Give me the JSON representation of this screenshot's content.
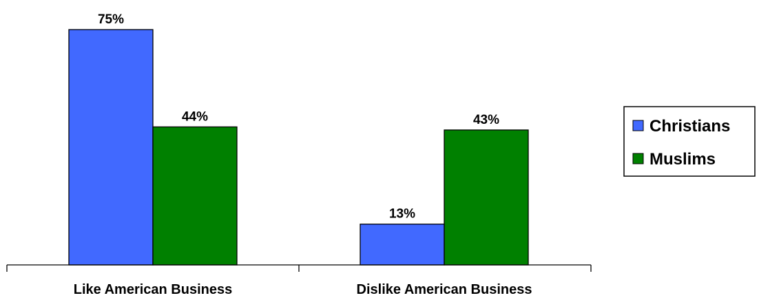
{
  "chart_data": {
    "type": "bar",
    "categories": [
      "Like American Business",
      "Dislike American Business"
    ],
    "series": [
      {
        "name": "Christians",
        "values": [
          75,
          13
        ],
        "labels": [
          "75%",
          "13%"
        ],
        "color": "#4169ff"
      },
      {
        "name": "Muslims",
        "values": [
          44,
          43
        ],
        "labels": [
          "44%",
          "43%"
        ],
        "color": "#008000"
      }
    ],
    "title": "",
    "xlabel": "",
    "ylabel": "",
    "ylim": [
      0,
      75
    ],
    "grid": false,
    "legend_position": "right",
    "value_unit": "%"
  }
}
